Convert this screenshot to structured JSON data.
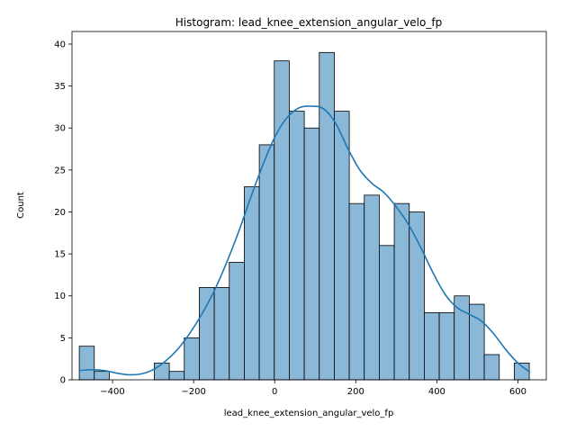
{
  "chart_data": {
    "type": "bar",
    "title": "Histogram: lead_knee_extension_angular_velo_fp",
    "xlabel": "lead_knee_extension_angular_velo_fp",
    "ylabel": "Count",
    "xlim": [
      -500,
      670
    ],
    "ylim": [
      0,
      41.5
    ],
    "xticks": [
      -400,
      -200,
      0,
      200,
      400,
      600
    ],
    "yticks": [
      0,
      5,
      10,
      15,
      20,
      25,
      30,
      35,
      40
    ],
    "bin_width": 37,
    "bin_start": -482,
    "counts": [
      4,
      1,
      0,
      0,
      0,
      2,
      1,
      5,
      11,
      11,
      14,
      23,
      28,
      38,
      32,
      30,
      39,
      32,
      21,
      22,
      16,
      21,
      20,
      8,
      8,
      10,
      9,
      3,
      0,
      2
    ],
    "kde": {
      "x": [
        -482,
        -450,
        -420,
        -390,
        -360,
        -330,
        -300,
        -270,
        -240,
        -210,
        -180,
        -150,
        -120,
        -90,
        -60,
        -30,
        0,
        30,
        60,
        90,
        120,
        150,
        180,
        210,
        240,
        270,
        300,
        330,
        360,
        390,
        420,
        450,
        480,
        510,
        540,
        570,
        600,
        630
      ],
      "y": [
        1.1,
        1.2,
        1.1,
        0.8,
        0.6,
        0.7,
        1.2,
        2.2,
        3.6,
        5.5,
        7.8,
        10.5,
        13.8,
        17.5,
        21.6,
        25.5,
        28.9,
        31.2,
        32.4,
        32.6,
        32.3,
        30.6,
        27.6,
        25.0,
        23.4,
        22.3,
        20.6,
        18.5,
        15.8,
        12.8,
        10.2,
        8.6,
        7.8,
        7.0,
        5.5,
        3.6,
        2.0,
        0.9
      ]
    },
    "bar_color": "#8cb8d8",
    "bar_edge_color": "#000000",
    "kde_color": "#1f77b4",
    "grid": false,
    "legend": false
  }
}
